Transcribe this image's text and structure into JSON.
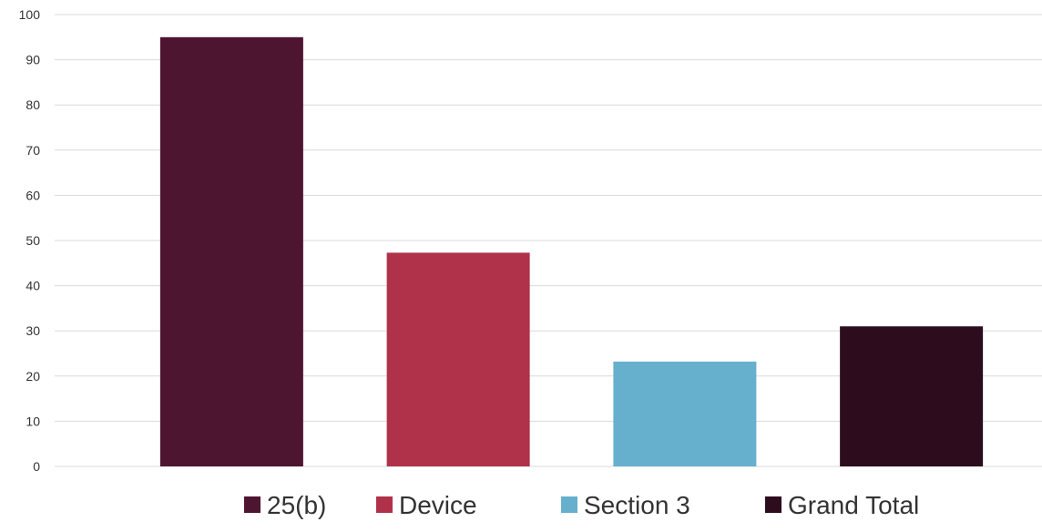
{
  "chart_data": {
    "type": "bar",
    "categories": [
      "25(b)",
      "Device",
      "Section 3",
      "Grand Total"
    ],
    "series": [
      {
        "name": "25(b)",
        "color": "#4e1530",
        "values": [
          95,
          null,
          null,
          null
        ]
      },
      {
        "name": "Device",
        "color": "#b0324a",
        "values": [
          null,
          47.3,
          null,
          null
        ]
      },
      {
        "name": "Section 3",
        "color": "#66b0cd",
        "values": [
          null,
          null,
          23.2,
          null
        ]
      },
      {
        "name": "Grand Total",
        "color": "#2d0c1e",
        "values": [
          null,
          null,
          null,
          31
        ]
      }
    ],
    "ylim": [
      0,
      100
    ],
    "yticks": [
      0,
      10,
      20,
      30,
      40,
      50,
      60,
      70,
      80,
      90,
      100
    ],
    "grid": true,
    "legend": {
      "position": "bottom",
      "items": [
        {
          "label": "25(b)",
          "color": "#4e1530"
        },
        {
          "label": "Device",
          "color": "#b0324a"
        },
        {
          "label": "Section 3",
          "color": "#66b0cd"
        },
        {
          "label": "Grand Total",
          "color": "#2d0c1e"
        }
      ]
    },
    "title": "",
    "xlabel": "",
    "ylabel": ""
  }
}
